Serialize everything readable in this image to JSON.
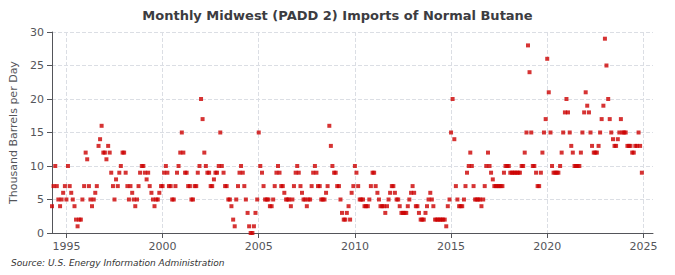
{
  "chart_data": {
    "type": "scatter",
    "title": "Monthly Midwest (PADD 2) Imports of Normal Butane",
    "ylabel": "Thousand Barrels per Day",
    "annotation": "Source: U.S. Energy Information Administration",
    "color": "#cc0000",
    "marker": "square",
    "grid": true,
    "xlim": [
      1994.25,
      2025.5
    ],
    "ylim": [
      0,
      30
    ],
    "xticks": [
      1995,
      2000,
      2005,
      2010,
      2015,
      2020,
      2025
    ],
    "yticks": [
      0,
      5,
      10,
      15,
      20,
      25,
      30
    ],
    "x": [
      1994.25,
      1994.33,
      1994.42,
      1994.5,
      1994.58,
      1994.67,
      1994.75,
      1994.83,
      1994.92,
      1995.0,
      1995.08,
      1995.17,
      1995.25,
      1995.33,
      1995.42,
      1995.5,
      1995.58,
      1995.67,
      1995.75,
      1995.83,
      1995.92,
      1996.0,
      1996.08,
      1996.17,
      1996.25,
      1996.33,
      1996.42,
      1996.5,
      1996.58,
      1996.67,
      1996.75,
      1996.83,
      1996.92,
      1997.0,
      1997.08,
      1997.17,
      1997.25,
      1997.33,
      1997.42,
      1997.5,
      1997.58,
      1997.67,
      1997.75,
      1997.83,
      1997.92,
      1998.0,
      1998.08,
      1998.17,
      1998.25,
      1998.33,
      1998.42,
      1998.5,
      1998.58,
      1998.67,
      1998.75,
      1998.83,
      1998.92,
      1999.0,
      1999.08,
      1999.17,
      1999.25,
      1999.33,
      1999.42,
      1999.5,
      1999.58,
      1999.67,
      1999.75,
      1999.83,
      1999.92,
      2000.0,
      2000.08,
      2000.17,
      2000.25,
      2000.33,
      2000.42,
      2000.5,
      2000.58,
      2000.67,
      2000.75,
      2000.83,
      2000.92,
      2001.0,
      2001.08,
      2001.17,
      2001.25,
      2001.33,
      2001.42,
      2001.5,
      2001.58,
      2001.67,
      2001.75,
      2001.83,
      2001.92,
      2002.0,
      2002.08,
      2002.17,
      2002.25,
      2002.33,
      2002.42,
      2002.5,
      2002.58,
      2002.67,
      2002.75,
      2002.83,
      2002.92,
      2003.0,
      2003.08,
      2003.17,
      2003.25,
      2003.33,
      2003.42,
      2003.5,
      2003.58,
      2003.67,
      2003.75,
      2003.83,
      2003.92,
      2004.0,
      2004.08,
      2004.17,
      2004.25,
      2004.33,
      2004.42,
      2004.5,
      2004.58,
      2004.67,
      2004.75,
      2004.83,
      2004.92,
      2005.0,
      2005.08,
      2005.17,
      2005.25,
      2005.33,
      2005.42,
      2005.5,
      2005.58,
      2005.67,
      2005.75,
      2005.83,
      2005.92,
      2006.0,
      2006.08,
      2006.17,
      2006.25,
      2006.33,
      2006.42,
      2006.5,
      2006.58,
      2006.67,
      2006.75,
      2006.83,
      2006.92,
      2007.0,
      2007.08,
      2007.17,
      2007.25,
      2007.33,
      2007.42,
      2007.5,
      2007.58,
      2007.67,
      2007.75,
      2007.83,
      2007.92,
      2008.0,
      2008.08,
      2008.17,
      2008.25,
      2008.33,
      2008.42,
      2008.5,
      2008.58,
      2008.67,
      2008.75,
      2008.83,
      2008.92,
      2009.0,
      2009.08,
      2009.17,
      2009.25,
      2009.33,
      2009.42,
      2009.5,
      2009.58,
      2009.67,
      2009.75,
      2009.83,
      2009.92,
      2010.0,
      2010.08,
      2010.17,
      2010.25,
      2010.33,
      2010.42,
      2010.5,
      2010.58,
      2010.67,
      2010.75,
      2010.83,
      2010.92,
      2011.0,
      2011.08,
      2011.17,
      2011.25,
      2011.33,
      2011.42,
      2011.5,
      2011.58,
      2011.67,
      2011.75,
      2011.83,
      2011.92,
      2012.0,
      2012.08,
      2012.17,
      2012.25,
      2012.33,
      2012.42,
      2012.5,
      2012.58,
      2012.67,
      2012.75,
      2012.83,
      2012.92,
      2013.0,
      2013.08,
      2013.17,
      2013.25,
      2013.33,
      2013.42,
      2013.5,
      2013.58,
      2013.67,
      2013.75,
      2013.83,
      2013.92,
      2014.0,
      2014.08,
      2014.17,
      2014.25,
      2014.33,
      2014.42,
      2014.5,
      2014.58,
      2014.67,
      2014.75,
      2014.83,
      2014.92,
      2015.0,
      2015.08,
      2015.17,
      2015.25,
      2015.33,
      2015.42,
      2015.5,
      2015.58,
      2015.67,
      2015.75,
      2015.83,
      2015.92,
      2016.0,
      2016.08,
      2016.17,
      2016.25,
      2016.33,
      2016.42,
      2016.5,
      2016.58,
      2016.67,
      2016.75,
      2016.83,
      2016.92,
      2017.0,
      2017.08,
      2017.17,
      2017.25,
      2017.33,
      2017.42,
      2017.5,
      2017.58,
      2017.67,
      2017.75,
      2017.83,
      2017.92,
      2018.0,
      2018.08,
      2018.17,
      2018.25,
      2018.33,
      2018.42,
      2018.5,
      2018.58,
      2018.67,
      2018.75,
      2018.83,
      2018.92,
      2019.0,
      2019.08,
      2019.17,
      2019.25,
      2019.33,
      2019.42,
      2019.5,
      2019.58,
      2019.67,
      2019.75,
      2019.83,
      2019.92,
      2020.0,
      2020.08,
      2020.17,
      2020.25,
      2020.33,
      2020.42,
      2020.5,
      2020.58,
      2020.67,
      2020.75,
      2020.83,
      2020.92,
      2021.0,
      2021.08,
      2021.17,
      2021.25,
      2021.33,
      2021.42,
      2021.5,
      2021.58,
      2021.67,
      2021.75,
      2021.83,
      2021.92,
      2022.0,
      2022.08,
      2022.17,
      2022.25,
      2022.33,
      2022.42,
      2022.5,
      2022.58,
      2022.67,
      2022.75,
      2022.83,
      2022.92,
      2023.0,
      2023.08,
      2023.17,
      2023.25,
      2023.33,
      2023.42,
      2023.5,
      2023.58,
      2023.67,
      2023.75,
      2023.83,
      2023.92,
      2024.0,
      2024.08,
      2024.17,
      2024.25,
      2024.33,
      2024.42,
      2024.5,
      2024.58,
      2024.67,
      2024.75,
      2024.83,
      2024.92
    ],
    "values": [
      4,
      7,
      10,
      7,
      5,
      4,
      5,
      6,
      7,
      5,
      10,
      7,
      6,
      5,
      4,
      2,
      1,
      2,
      2,
      5,
      7,
      12,
      11,
      7,
      5,
      4,
      5,
      6,
      7,
      13,
      14,
      16,
      12,
      12,
      11,
      13,
      12,
      9,
      7,
      5,
      8,
      7,
      9,
      10,
      12,
      12,
      9,
      7,
      5,
      7,
      6,
      5,
      4,
      5,
      7,
      9,
      10,
      10,
      9,
      8,
      9,
      7,
      6,
      5,
      4,
      5,
      5,
      6,
      7,
      7,
      9,
      10,
      9,
      7,
      7,
      5,
      5,
      7,
      9,
      10,
      12,
      15,
      12,
      9,
      9,
      7,
      7,
      5,
      5,
      7,
      7,
      9,
      10,
      20,
      17,
      12,
      10,
      9,
      9,
      7,
      7,
      8,
      9,
      9,
      10,
      15,
      10,
      9,
      7,
      7,
      5,
      5,
      4,
      2,
      1,
      5,
      7,
      9,
      10,
      9,
      7,
      5,
      3,
      1,
      0,
      0,
      1,
      3,
      5,
      15,
      10,
      9,
      7,
      5,
      5,
      5,
      4,
      4,
      5,
      7,
      9,
      10,
      9,
      7,
      7,
      6,
      5,
      5,
      5,
      4,
      5,
      7,
      9,
      10,
      9,
      7,
      6,
      5,
      5,
      4,
      5,
      5,
      7,
      9,
      10,
      9,
      7,
      7,
      5,
      5,
      5,
      6,
      7,
      16,
      13,
      10,
      9,
      9,
      7,
      7,
      5,
      3,
      2,
      2,
      3,
      4,
      2,
      6,
      7,
      10,
      9,
      7,
      5,
      5,
      5,
      4,
      4,
      4,
      5,
      7,
      9,
      9,
      7,
      6,
      5,
      4,
      4,
      4,
      3,
      4,
      5,
      6,
      7,
      7,
      6,
      5,
      5,
      4,
      3,
      3,
      3,
      3,
      4,
      5,
      6,
      7,
      6,
      4,
      4,
      3,
      2,
      2,
      2,
      3,
      4,
      5,
      6,
      5,
      4,
      2,
      2,
      2,
      2,
      2,
      2,
      2,
      1,
      4,
      5,
      15,
      20,
      14,
      7,
      5,
      4,
      4,
      4,
      5,
      7,
      9,
      10,
      12,
      10,
      7,
      5,
      5,
      5,
      5,
      4,
      5,
      7,
      10,
      12,
      10,
      9,
      8,
      7,
      7,
      7,
      7,
      7,
      7,
      9,
      10,
      10,
      10,
      9,
      9,
      9,
      9,
      9,
      9,
      9,
      10,
      10,
      12,
      15,
      28,
      24,
      15,
      10,
      10,
      9,
      7,
      7,
      9,
      12,
      15,
      17,
      26,
      21,
      15,
      10,
      9,
      9,
      9,
      9,
      10,
      12,
      15,
      18,
      20,
      18,
      15,
      13,
      12,
      10,
      10,
      10,
      10,
      12,
      15,
      18,
      21,
      19,
      18,
      15,
      13,
      12,
      12,
      12,
      13,
      15,
      17,
      19,
      29,
      25,
      20,
      17,
      15,
      14,
      13,
      13,
      14,
      15,
      17,
      15,
      15,
      15,
      13,
      13,
      13,
      12,
      12,
      13,
      13,
      15,
      13,
      9
    ]
  }
}
